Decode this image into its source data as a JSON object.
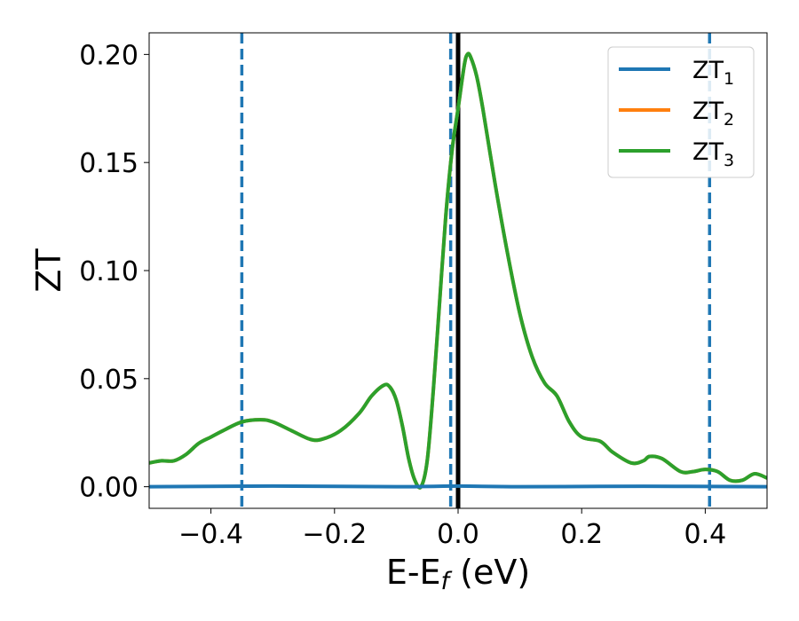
{
  "chart_data": {
    "type": "line",
    "title": "",
    "xlabel": "E-E",
    "xlabel_sub": "f",
    "xlabel_unit": " (eV)",
    "ylabel": "ZT",
    "xlim": [
      -0.5,
      0.5
    ],
    "ylim": [
      -0.01,
      0.21
    ],
    "xticks": [
      -0.4,
      -0.2,
      0.0,
      0.2,
      0.4
    ],
    "xtick_labels": [
      "−0.4",
      "−0.2",
      "0.0",
      "0.2",
      "0.4"
    ],
    "yticks": [
      0.0,
      0.05,
      0.1,
      0.15,
      0.2
    ],
    "ytick_labels": [
      "0.00",
      "0.05",
      "0.10",
      "0.15",
      "0.20"
    ],
    "grid": false,
    "legend_position": "top-right",
    "vlines": [
      {
        "x": -0.35,
        "style": "dashed",
        "color": "#1f77b4"
      },
      {
        "x": -0.012,
        "style": "dashed",
        "color": "#1f77b4"
      },
      {
        "x": 0.407,
        "style": "dashed",
        "color": "#1f77b4"
      },
      {
        "x": 0.0,
        "style": "solid",
        "color": "#000000"
      }
    ],
    "series": [
      {
        "name": "ZT",
        "sub": "1",
        "color": "#1f77b4",
        "x": [
          -0.5,
          -0.3,
          -0.1,
          0.0,
          0.1,
          0.3,
          0.5
        ],
        "y": [
          0.0,
          0.0003,
          0.0,
          0.0003,
          0.0,
          0.0002,
          0.0
        ]
      },
      {
        "name": "ZT",
        "sub": "2",
        "color": "#ff7f0e",
        "x": [
          -0.5,
          -0.48,
          -0.46,
          -0.44,
          -0.42,
          -0.4,
          -0.38,
          -0.35,
          -0.32,
          -0.3,
          -0.27,
          -0.24,
          -0.22,
          -0.19,
          -0.16,
          -0.14,
          -0.12,
          -0.11,
          -0.1,
          -0.09,
          -0.08,
          -0.07,
          -0.06,
          -0.05,
          -0.04,
          -0.03,
          -0.02,
          -0.01,
          0.0,
          0.01,
          0.015,
          0.02,
          0.03,
          0.04,
          0.06,
          0.08,
          0.1,
          0.12,
          0.14,
          0.16,
          0.18,
          0.2,
          0.23,
          0.25,
          0.28,
          0.3,
          0.31,
          0.33,
          0.36,
          0.38,
          0.4,
          0.42,
          0.44,
          0.46,
          0.48,
          0.5
        ],
        "y": [
          0.011,
          0.012,
          0.012,
          0.015,
          0.02,
          0.023,
          0.026,
          0.03,
          0.031,
          0.03,
          0.026,
          0.022,
          0.022,
          0.026,
          0.034,
          0.042,
          0.047,
          0.046,
          0.04,
          0.028,
          0.013,
          0.003,
          0.0,
          0.012,
          0.045,
          0.085,
          0.125,
          0.155,
          0.175,
          0.195,
          0.2,
          0.199,
          0.19,
          0.175,
          0.14,
          0.108,
          0.08,
          0.06,
          0.048,
          0.042,
          0.03,
          0.023,
          0.021,
          0.016,
          0.011,
          0.012,
          0.014,
          0.013,
          0.007,
          0.007,
          0.008,
          0.007,
          0.003,
          0.003,
          0.006,
          0.004
        ]
      },
      {
        "name": "ZT",
        "sub": "3",
        "color": "#2ca02c",
        "x": [
          -0.5,
          -0.48,
          -0.46,
          -0.44,
          -0.42,
          -0.4,
          -0.38,
          -0.35,
          -0.32,
          -0.3,
          -0.27,
          -0.24,
          -0.22,
          -0.19,
          -0.16,
          -0.14,
          -0.12,
          -0.11,
          -0.1,
          -0.09,
          -0.08,
          -0.07,
          -0.06,
          -0.05,
          -0.04,
          -0.03,
          -0.02,
          -0.01,
          0.0,
          0.01,
          0.015,
          0.02,
          0.03,
          0.04,
          0.06,
          0.08,
          0.1,
          0.12,
          0.14,
          0.16,
          0.18,
          0.2,
          0.23,
          0.25,
          0.28,
          0.3,
          0.31,
          0.33,
          0.36,
          0.38,
          0.4,
          0.42,
          0.44,
          0.46,
          0.48,
          0.5
        ],
        "y": [
          0.011,
          0.012,
          0.012,
          0.015,
          0.02,
          0.023,
          0.026,
          0.03,
          0.031,
          0.03,
          0.026,
          0.022,
          0.022,
          0.026,
          0.034,
          0.042,
          0.047,
          0.046,
          0.04,
          0.028,
          0.013,
          0.003,
          0.0,
          0.012,
          0.045,
          0.085,
          0.125,
          0.155,
          0.175,
          0.195,
          0.2,
          0.199,
          0.19,
          0.175,
          0.14,
          0.108,
          0.08,
          0.06,
          0.048,
          0.042,
          0.03,
          0.023,
          0.021,
          0.016,
          0.011,
          0.012,
          0.014,
          0.013,
          0.007,
          0.007,
          0.008,
          0.007,
          0.003,
          0.003,
          0.006,
          0.004
        ]
      }
    ]
  }
}
